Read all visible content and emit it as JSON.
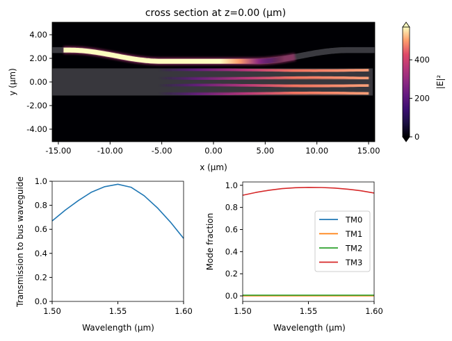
{
  "chart_data": [
    {
      "type": "heatmap",
      "title": "cross section at z=0.00 (μm)",
      "xlabel": "x (μm)",
      "ylabel": "y (μm)",
      "xlim": [
        -15.6,
        15.6
      ],
      "ylim": [
        -5.06,
        5.06
      ],
      "xticks": [
        -15,
        -10,
        -5,
        0,
        5,
        10,
        15
      ],
      "xtick_labels": [
        "-15.00",
        "-10.00",
        "-5.00",
        "0.00",
        "5.00",
        "10.00",
        "15.00"
      ],
      "yticks": [
        4,
        2,
        0,
        -2,
        -4
      ],
      "ytick_labels": [
        "4.00",
        "2.00",
        "0.00",
        "-2.00",
        "-4.00"
      ],
      "colormap": "magma",
      "colorbar": {
        "label": "|E|²",
        "clim": [
          0,
          570
        ],
        "ticks": [
          0,
          200,
          400
        ],
        "tick_labels": [
          "0",
          "200",
          "400"
        ],
        "extend": "both"
      }
    },
    {
      "type": "line",
      "xlabel": "Wavelength ($\\mu$m)",
      "xlabel_display": "Wavelength (μm)",
      "ylabel": "Transmission to bus waveguide",
      "xlim": [
        1.5,
        1.6
      ],
      "ylim": [
        0,
        1
      ],
      "xticks": [
        "1.50",
        "1.55",
        "1.60"
      ],
      "yticks": [
        "0.0",
        "0.2",
        "0.4",
        "0.6",
        "0.8",
        "1.0"
      ],
      "x": [
        1.5,
        1.51,
        1.52,
        1.53,
        1.54,
        1.55,
        1.56,
        1.57,
        1.58,
        1.59,
        1.6
      ],
      "series": [
        {
          "values": [
            0.67,
            0.76,
            0.84,
            0.91,
            0.955,
            0.975,
            0.95,
            0.88,
            0.78,
            0.66,
            0.525
          ],
          "color": "#1f77b4"
        }
      ]
    },
    {
      "type": "line",
      "xlabel_display": "Wavelength (μm)",
      "ylabel": "Mode fraction",
      "xlim": [
        1.5,
        1.6
      ],
      "ylim": [
        -0.05,
        1.03
      ],
      "xticks": [
        "1.50",
        "1.55",
        "1.60"
      ],
      "yticks": [
        "0.0",
        "0.2",
        "0.4",
        "0.6",
        "0.8",
        "1.0"
      ],
      "legend": "center-right",
      "x": [
        1.5,
        1.51,
        1.52,
        1.53,
        1.54,
        1.55,
        1.56,
        1.57,
        1.58,
        1.59,
        1.6
      ],
      "series": [
        {
          "name": "TM0",
          "color": "#1f77b4",
          "values": [
            0.002,
            0.002,
            0.002,
            0.002,
            0.002,
            0.002,
            0.002,
            0.002,
            0.002,
            0.002,
            0.002
          ]
        },
        {
          "name": "TM1",
          "color": "#ff7f0e",
          "values": [
            0.0,
            0.0,
            0.0,
            0.0,
            0.0,
            0.0,
            0.0,
            0.0,
            0.0,
            0.0,
            0.0
          ]
        },
        {
          "name": "TM2",
          "color": "#2ca02c",
          "values": [
            0.006,
            0.006,
            0.006,
            0.006,
            0.006,
            0.006,
            0.006,
            0.006,
            0.006,
            0.006,
            0.006
          ]
        },
        {
          "name": "TM3",
          "color": "#d62728",
          "values": [
            0.91,
            0.935,
            0.955,
            0.97,
            0.978,
            0.981,
            0.98,
            0.975,
            0.965,
            0.95,
            0.93
          ]
        }
      ]
    }
  ]
}
